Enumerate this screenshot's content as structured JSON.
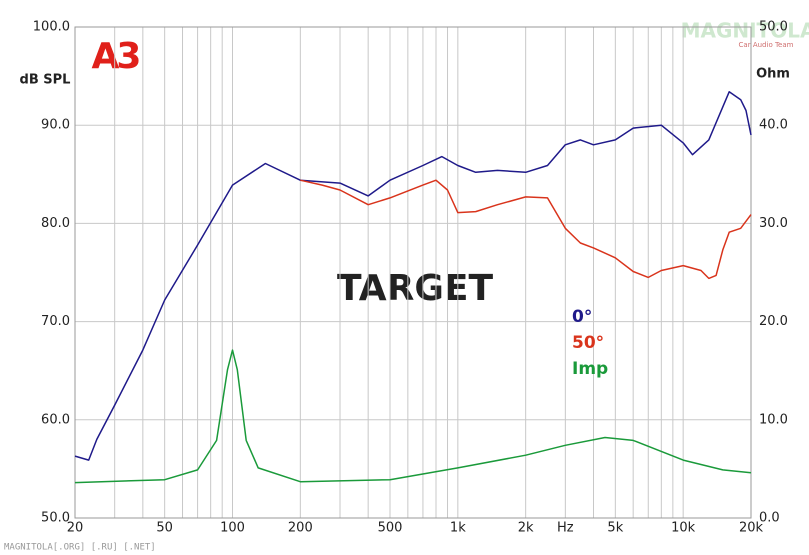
{
  "chart_data": {
    "type": "line",
    "title": "TARGET",
    "logo": "A3",
    "watermark": "MAGNITOLA",
    "watermark_sub": "Car Audio Team",
    "footer": "MAGNITOLA[.ORG] [.RU] [.NET]",
    "y_label": "dB SPL",
    "y2_label": "Ohm",
    "x_label": "Hz",
    "xscale": "log",
    "grid": true,
    "xlim": [
      20,
      20000
    ],
    "xticks": [
      20,
      50,
      100,
      200,
      500,
      {
        "value": 1000,
        "label": "1k"
      },
      {
        "value": 2000,
        "label": "2k"
      },
      {
        "value": 5000,
        "label": "5k"
      },
      {
        "value": 10000,
        "label": "10k"
      },
      {
        "value": 20000,
        "label": "20k"
      }
    ],
    "xminor": [
      30,
      40,
      60,
      70,
      80,
      90,
      300,
      400,
      600,
      700,
      800,
      900,
      3000,
      4000,
      6000,
      7000,
      8000,
      9000
    ],
    "ylim": [
      50,
      100
    ],
    "yticks": [
      {
        "value": 50,
        "label": "50.0"
      },
      {
        "value": 60,
        "label": "60.0"
      },
      {
        "value": 70,
        "label": "70.0"
      },
      {
        "value": 80,
        "label": "80.0"
      },
      {
        "value": 90,
        "label": "90.0"
      },
      {
        "value": 100,
        "label": "100.0"
      }
    ],
    "y2lim": [
      0,
      50
    ],
    "y2ticks": [
      {
        "value": 0,
        "label": "0.0"
      },
      {
        "value": 10,
        "label": "10.0"
      },
      {
        "value": 20,
        "label": "20.0"
      },
      {
        "value": 30,
        "label": "30.0"
      },
      {
        "value": 40,
        "label": "40.0"
      },
      {
        "value": 50,
        "label": "50.0"
      }
    ],
    "series": [
      {
        "name": "0°",
        "color": "#1f1a8a",
        "x": [
          20,
          23,
          25,
          30,
          40,
          50,
          70,
          100,
          140,
          200,
          300,
          400,
          500,
          700,
          850,
          1000,
          1200,
          1500,
          2000,
          2500,
          3000,
          3500,
          4000,
          5000,
          6000,
          8000,
          10000,
          11000,
          13000,
          16000,
          18000,
          19000,
          20000
        ],
        "values": [
          56.3,
          55.9,
          58.0,
          61.5,
          67.1,
          72.2,
          77.8,
          83.9,
          86.1,
          84.4,
          84.1,
          82.8,
          84.4,
          85.9,
          86.8,
          85.9,
          85.2,
          85.4,
          85.2,
          85.9,
          88.0,
          88.5,
          88.0,
          88.5,
          89.7,
          90.0,
          88.2,
          87.0,
          88.5,
          93.4,
          92.6,
          91.5,
          89.0
        ]
      },
      {
        "name": "50°",
        "color": "#d9341c",
        "x": [
          200,
          250,
          300,
          400,
          500,
          700,
          800,
          900,
          1000,
          1200,
          1500,
          2000,
          2500,
          3000,
          3500,
          4000,
          5000,
          6000,
          7000,
          8000,
          10000,
          12000,
          13000,
          14000,
          15000,
          16000,
          18000,
          20000
        ],
        "values": [
          84.4,
          83.9,
          83.4,
          81.9,
          82.6,
          83.9,
          84.4,
          83.4,
          81.1,
          81.2,
          81.9,
          82.7,
          82.6,
          79.5,
          78.0,
          77.5,
          76.5,
          75.1,
          74.5,
          75.2,
          75.7,
          75.2,
          74.4,
          74.7,
          77.3,
          79.1,
          79.5,
          80.9
        ]
      },
      {
        "name": "Imp",
        "color": "#1a9a3a",
        "axis": "y2",
        "x": [
          20,
          50,
          70,
          85,
          95,
          100,
          105,
          115,
          130,
          200,
          500,
          1000,
          2000,
          3000,
          4500,
          6000,
          10000,
          15000,
          20000
        ],
        "values": [
          3.6,
          3.9,
          4.9,
          7.9,
          15.1,
          17.1,
          15.1,
          7.9,
          5.1,
          3.7,
          3.9,
          5.1,
          6.4,
          7.4,
          8.2,
          7.9,
          5.9,
          4.9,
          4.6
        ]
      }
    ]
  }
}
